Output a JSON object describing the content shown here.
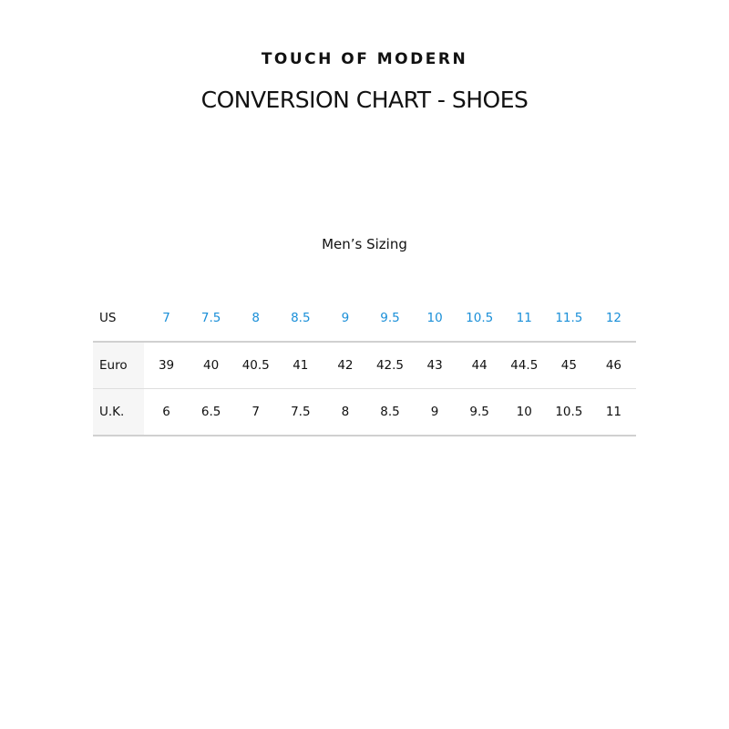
{
  "brand": "TOUCH OF MODERN",
  "title": "CONVERSION CHART - SHOES",
  "subtitle": "Men’s Sizing",
  "colors": {
    "us_values": "#1a8fd8",
    "row_label_bg": "#f6f6f6",
    "divider": "#d0d0d0"
  },
  "table": {
    "rows": [
      {
        "label": "US",
        "values": [
          "7",
          "7.5",
          "8",
          "8.5",
          "9",
          "9.5",
          "10",
          "10.5",
          "11",
          "11.5",
          "12"
        ]
      },
      {
        "label": "Euro",
        "values": [
          "39",
          "40",
          "40.5",
          "41",
          "42",
          "42.5",
          "43",
          "44",
          "44.5",
          "45",
          "46"
        ]
      },
      {
        "label": "U.K.",
        "values": [
          "6",
          "6.5",
          "7",
          "7.5",
          "8",
          "8.5",
          "9",
          "9.5",
          "10",
          "10.5",
          "11"
        ]
      }
    ]
  }
}
